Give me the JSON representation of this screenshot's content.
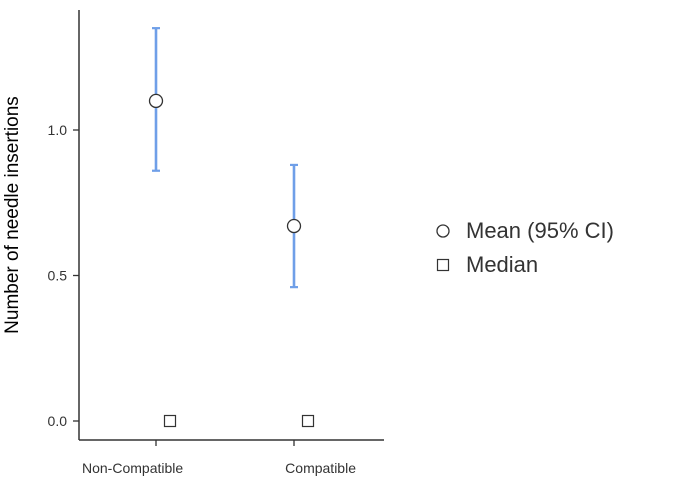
{
  "chart_data": {
    "type": "scatter",
    "title": "",
    "ylabel": "Number of needle insertions",
    "xlabel": "",
    "categories": [
      "Non-Compatible",
      "Compatible"
    ],
    "ylim": [
      -0.05,
      1.4
    ],
    "yticks": [
      0.0,
      0.5,
      1.0
    ],
    "ytick_labels": [
      "0.0",
      "0.5",
      "1.0"
    ],
    "series": [
      {
        "name": "Mean (95% CI)",
        "marker": "circle",
        "values": [
          1.1,
          0.67
        ],
        "ci_low": [
          0.86,
          0.46
        ],
        "ci_high": [
          1.35,
          0.88
        ]
      },
      {
        "name": "Median",
        "marker": "square",
        "values": [
          0,
          0
        ]
      }
    ],
    "legend_position": "right",
    "colors": {
      "error_bar": "#6f9fe8",
      "marker_stroke": "#333333",
      "axis": "#333333",
      "tick_text": "#333333"
    }
  }
}
